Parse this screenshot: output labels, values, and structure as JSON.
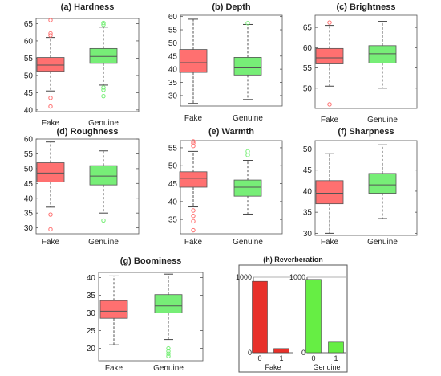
{
  "colors": {
    "fake": "#ff7070",
    "genuine": "#77ee77",
    "fake_bar": "#e8302a",
    "genuine_bar": "#66ee44"
  },
  "chart_data": [
    {
      "type": "box",
      "title": "(a) Hardness",
      "categories": [
        "Fake",
        "Genuine"
      ],
      "ylim": [
        39.5,
        66.5
      ],
      "yticks": [
        40,
        45,
        50,
        55,
        60,
        65
      ],
      "boxes": [
        {
          "name": "Fake",
          "whisker_low": 45.5,
          "q1": 51.2,
          "median": 53,
          "q3": 55.2,
          "whisker_high": 61,
          "outliers": [
            61.6,
            62.2,
            66,
            43.5,
            41
          ]
        },
        {
          "name": "Genuine",
          "whisker_low": 47.2,
          "q1": 53.5,
          "median": 55.5,
          "q3": 57.8,
          "whisker_high": 64,
          "outliers": [
            64.7,
            65.2,
            46.5,
            45.8,
            44
          ]
        }
      ]
    },
    {
      "type": "box",
      "title": "(b) Depth",
      "categories": [
        "Fake",
        "Genuine"
      ],
      "ylim": [
        26,
        60.5
      ],
      "yticks": [
        30,
        35,
        40,
        45,
        50,
        55,
        60
      ],
      "boxes": [
        {
          "name": "Fake",
          "whisker_low": 27,
          "q1": 38.8,
          "median": 42.5,
          "q3": 47.5,
          "whisker_high": 59,
          "outliers": []
        },
        {
          "name": "Genuine",
          "whisker_low": 28.5,
          "q1": 37.8,
          "median": 40.5,
          "q3": 44.5,
          "whisker_high": 57,
          "outliers": [
            57.5
          ]
        }
      ]
    },
    {
      "type": "box",
      "title": "(c) Brightness",
      "categories": [
        "Fake",
        "Genuine"
      ],
      "ylim": [
        45,
        68
      ],
      "yticks": [
        50,
        55,
        60,
        65
      ],
      "boxes": [
        {
          "name": "Fake",
          "whisker_low": 50.5,
          "q1": 56,
          "median": 57.5,
          "q3": 59.8,
          "whisker_high": 65.5,
          "outliers": [
            66.2,
            46
          ]
        },
        {
          "name": "Genuine",
          "whisker_low": 50,
          "q1": 56.2,
          "median": 58.5,
          "q3": 60.5,
          "whisker_high": 66.5,
          "outliers": []
        }
      ]
    },
    {
      "type": "box",
      "title": "(d) Roughness",
      "categories": [
        "Fake",
        "Genuine"
      ],
      "ylim": [
        28,
        60
      ],
      "yticks": [
        30,
        35,
        40,
        45,
        50,
        55,
        60
      ],
      "boxes": [
        {
          "name": "Fake",
          "whisker_low": 37,
          "q1": 45.5,
          "median": 48.5,
          "q3": 52,
          "whisker_high": 59,
          "outliers": [
            34.5,
            29.5
          ]
        },
        {
          "name": "Genuine",
          "whisker_low": 35,
          "q1": 44.5,
          "median": 47.5,
          "q3": 51,
          "whisker_high": 56,
          "outliers": [
            32.5
          ]
        }
      ]
    },
    {
      "type": "box",
      "title": "(e) Warmth",
      "categories": [
        "Fake",
        "Genuine"
      ],
      "ylim": [
        31,
        57
      ],
      "yticks": [
        35,
        40,
        45,
        50,
        55
      ],
      "boxes": [
        {
          "name": "Fake",
          "whisker_low": 38.5,
          "q1": 44,
          "median": 46.5,
          "q3": 48.3,
          "whisker_high": 54,
          "outliers": [
            55.5,
            56.3,
            56.8,
            37.5,
            36,
            34.5,
            32
          ]
        },
        {
          "name": "Genuine",
          "whisker_low": 36.5,
          "q1": 41.5,
          "median": 44,
          "q3": 46,
          "whisker_high": 51.5,
          "outliers": [
            53,
            54
          ]
        }
      ]
    },
    {
      "type": "box",
      "title": "(f) Sharpness",
      "categories": [
        "Fake",
        "Genuine"
      ],
      "ylim": [
        29.5,
        52
      ],
      "yticks": [
        30,
        35,
        40,
        45,
        50
      ],
      "boxes": [
        {
          "name": "Fake",
          "whisker_low": 30,
          "q1": 37,
          "median": 39.5,
          "q3": 42.5,
          "whisker_high": 49,
          "outliers": []
        },
        {
          "name": "Genuine",
          "whisker_low": 33.5,
          "q1": 39.5,
          "median": 41.5,
          "q3": 44.2,
          "whisker_high": 51,
          "outliers": []
        }
      ]
    },
    {
      "type": "box",
      "title": "(g) Boominess",
      "categories": [
        "Fake",
        "Genuine"
      ],
      "ylim": [
        16.5,
        41.5
      ],
      "yticks": [
        20,
        25,
        30,
        35,
        40
      ],
      "boxes": [
        {
          "name": "Fake",
          "whisker_low": 21,
          "q1": 28.5,
          "median": 30.5,
          "q3": 33.5,
          "whisker_high": 40.5,
          "outliers": []
        },
        {
          "name": "Genuine",
          "whisker_low": 22.5,
          "q1": 30,
          "median": 32,
          "q3": 35.2,
          "whisker_high": 41,
          "outliers": [
            20,
            19.2,
            18.5,
            17.8
          ]
        }
      ]
    },
    {
      "type": "bar",
      "title": "(h) Reverberation",
      "ylim": [
        0,
        1000
      ],
      "yticks": [
        0,
        1000
      ],
      "groups": [
        {
          "name": "Fake",
          "categories": [
            "0",
            "1"
          ],
          "values": [
            945,
            55
          ]
        },
        {
          "name": "Genuine",
          "categories": [
            "0",
            "1"
          ],
          "values": [
            970,
            140
          ]
        }
      ]
    }
  ]
}
